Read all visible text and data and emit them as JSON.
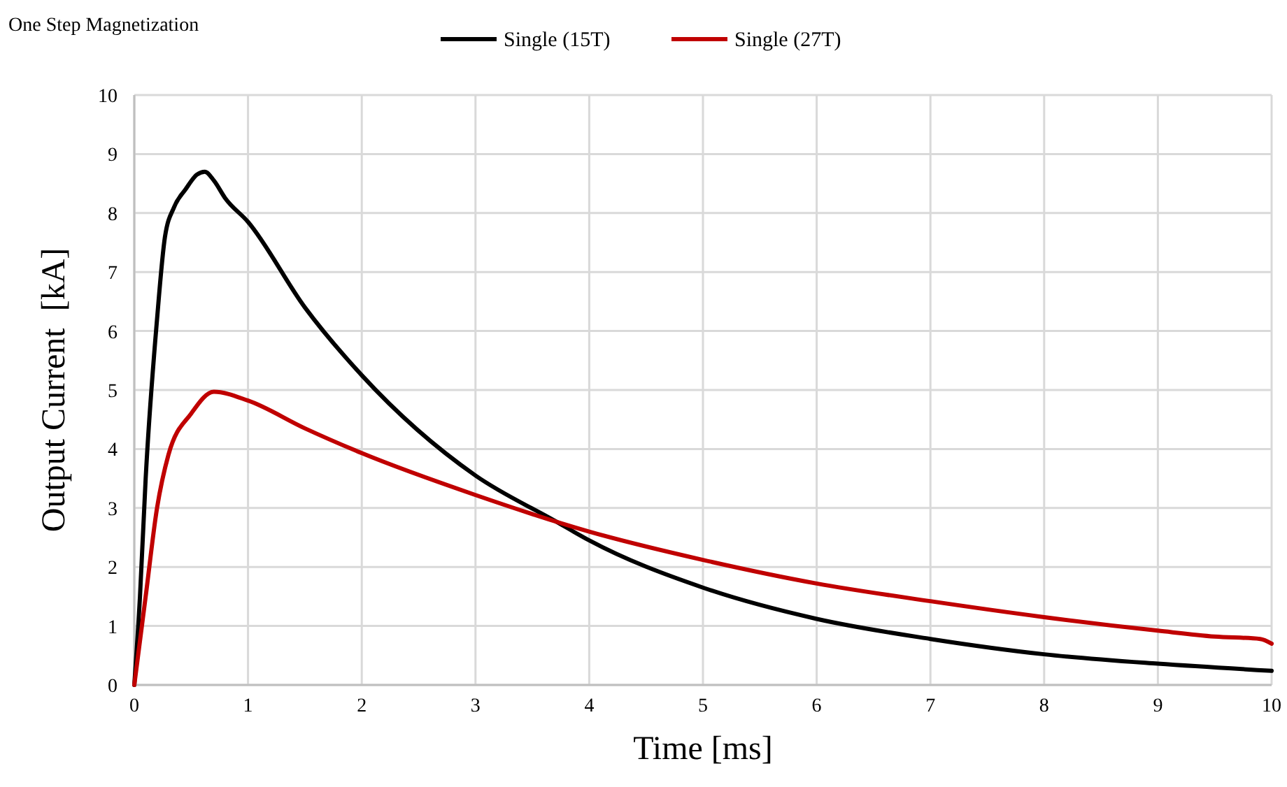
{
  "chart_data": {
    "type": "line",
    "title": "One Step Magnetization",
    "xlabel": "Time [ms]",
    "ylabel": "Output Current  [kA]",
    "xlim": [
      0,
      10
    ],
    "xticks": [
      0,
      1,
      2,
      3,
      4,
      5,
      6,
      7,
      8,
      9,
      10
    ],
    "ylim": [
      0,
      10
    ],
    "yticks": [
      0,
      1,
      2,
      3,
      4,
      5,
      6,
      7,
      8,
      9,
      10
    ],
    "grid": true,
    "legend": "top",
    "marker": "none",
    "line_style": "solid",
    "series": [
      {
        "name": "Single (15T)",
        "color": "#000000",
        "x": [
          0,
          0.05,
          0.1,
          0.2,
          0.27,
          0.35,
          0.45,
          0.55,
          0.62,
          0.7,
          0.8,
          1,
          1.5,
          2,
          3,
          3.7,
          4,
          5,
          6,
          7,
          8,
          9,
          10
        ],
        "values": [
          0,
          1.5,
          3.5,
          6.2,
          7.6,
          8.1,
          8.4,
          8.65,
          8.7,
          8.55,
          8.25,
          7.85,
          6.4,
          5.25,
          3.55,
          2.78,
          2.45,
          1.65,
          1.12,
          0.78,
          0.52,
          0.36,
          0.24
        ]
      },
      {
        "name": "Single (27T)",
        "color": "#c00000",
        "x": [
          0,
          0.1,
          0.2,
          0.3,
          0.5,
          0.7,
          1,
          1.5,
          2,
          3,
          4,
          5,
          6,
          7,
          8,
          9,
          9.5,
          9.9,
          10
        ],
        "values": [
          0,
          1.5,
          3.0,
          3.9,
          4.6,
          4.97,
          4.82,
          4.35,
          3.93,
          3.22,
          2.6,
          2.12,
          1.72,
          1.42,
          1.15,
          0.92,
          0.82,
          0.78,
          0.7
        ]
      }
    ]
  }
}
